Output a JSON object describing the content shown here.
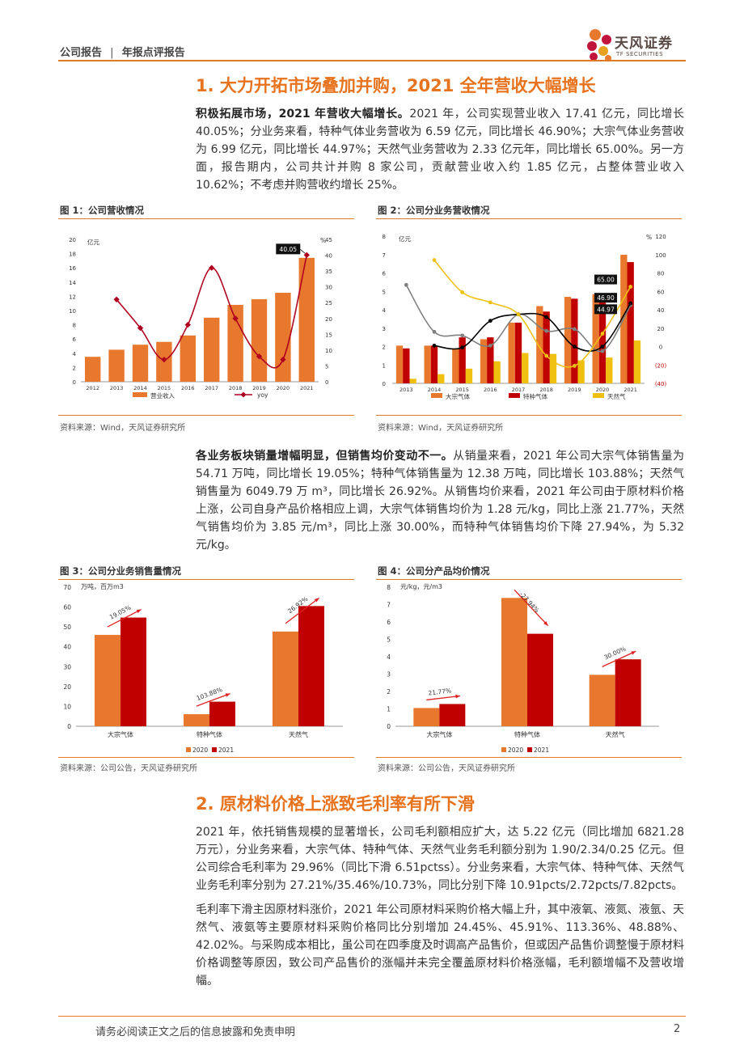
{
  "header": {
    "left": "公司报告",
    "sep": "|",
    "right": "年报点评报告",
    "brand": "天风证券",
    "brand_sub": "TF SECURITIES"
  },
  "section1": {
    "title": "1. 大力开拓市场叠加并购，2021 全年营收大幅增长",
    "p1_bold": "积极拓展市场，2021 年营收大幅增长。",
    "p1_text": "2021 年，公司实现营业收入 17.41 亿元，同比增长 40.05%；分业务来看，特种气体业务营收为 6.59 亿元，同比增长 46.90%；大宗气体业务营收为 6.99 亿元，同比增长 44.97%；天然气业务营收为 2.33 亿元年，同比增长 65.00%。另一方面，报告期内，公司共计并购 8 家公司，贡献营业收入约 1.85 亿元，占整体营业收入 10.62%；不考虑并购营收约增长 25%。",
    "p2_bold": "各业务板块销量增幅明显，但销售均价变动不一。",
    "p2_text": "从销量来看，2021 年公司大宗气体销售量为 54.71 万吨，同比增长 19.05%；特种气体销售量为 12.38 万吨，同比增长 103.88%；天然气销售量为 6049.79 万 m³，同比增长 26.92%。从销售均价来看，2021 年公司由于原材料价格上涨，公司自身产品价格相应上调，大宗气体销售均价为 1.28 元/kg，同比上涨 21.77%，天然气销售均价为 3.85 元/m³，同比上涨 30.00%，而特种气体销售均价下降 27.94%，为 5.32 元/kg。"
  },
  "section2": {
    "title": "2. 原材料价格上涨致毛利率有所下滑",
    "p1": "2021 年，依托销售规模的显著增长，公司毛利额相应扩大，达 5.22 亿元（同比增加 6821.28 万元），分业务来看，大宗气体、特种气体、天然气业务毛利额分别为 1.90/2.34/0.25 亿元。但公司综合毛利率为 29.96%（同比下滑 6.51pctss）。分业务来看，大宗气体、特种气体、天然气业务毛利率分别为 27.21%/35.46%/10.73%，同比分别下降 10.91pcts/2.72pcts/7.82pcts。",
    "p2": "毛利率下滑主因原材料涨价，2021 年公司原材料采购价格大幅上升，其中液氧、液氮、液氩、天然气、液氨等主要原材料采购价格同比分别增加 24.45%、45.91%、113.36%、48.88%、42.02%。与采购成本相比，虽公司在四季度及时调高产品售价，但或因产品售价调整慢于原材料价格调整等原因，致公司产品售价的涨幅并未完全覆盖原材料价格涨幅，毛利额增幅不及营收增幅。"
  },
  "figures": {
    "f1": {
      "title": "图 1：公司营收情况",
      "source": "资料来源：Wind，天风证券研究所"
    },
    "f2": {
      "title": "图 2：公司分业务营收情况",
      "source": "资料来源：Wind，天风证券研究所"
    },
    "f3": {
      "title": "图 3：公司分业务销售量情况",
      "source": "资料来源：公司公告，天风证券研究所"
    },
    "f4": {
      "title": "图 4：公司分产品均价情况",
      "source": "资料来源：公司公告，天风证券研究所"
    }
  },
  "footer": {
    "disclaimer": "请务必阅读正文之后的信息披露和免责申明",
    "page": "2"
  },
  "colors": {
    "orange": "#e8782d",
    "red": "#c00000",
    "gold": "#f0c010",
    "darkred": "#b00020",
    "accent": "#e07b22"
  },
  "chart_data": [
    {
      "id": "f1",
      "type": "bar",
      "categories": [
        "2012",
        "2013",
        "2014",
        "2015",
        "2016",
        "2017",
        "2018",
        "2019",
        "2020",
        "2021"
      ],
      "series": [
        {
          "name": "营业收入",
          "type": "bar",
          "axis": "left",
          "values": [
            3.5,
            4.5,
            5.2,
            5.6,
            6.5,
            9.0,
            10.8,
            11.6,
            12.5,
            17.41
          ]
        },
        {
          "name": "yoy",
          "type": "line",
          "axis": "right",
          "values": [
            null,
            26,
            17,
            7,
            18,
            36,
            20,
            8,
            7,
            40.05
          ]
        }
      ],
      "ylabel_left": "亿元",
      "ylabel_right": "%",
      "ylim_left": [
        0,
        20
      ],
      "ylim_right": [
        0,
        45
      ],
      "yticks_left": [
        "0",
        "2",
        "4",
        "6",
        "8",
        "10",
        "12",
        "14",
        "16",
        "18",
        "20"
      ],
      "yticks_right": [
        "0",
        "5",
        "10",
        "15",
        "20",
        "25",
        "30",
        "35",
        "40",
        "45"
      ],
      "annotation": "40.05"
    },
    {
      "id": "f2",
      "type": "bar",
      "categories": [
        "2013",
        "2014",
        "2015",
        "2016",
        "2017",
        "2018",
        "2019",
        "2020",
        "2021"
      ],
      "series": [
        {
          "name": "大宗气体",
          "type": "bar",
          "axis": "left",
          "values": [
            2.05,
            2.05,
            1.9,
            2.4,
            3.3,
            4.2,
            4.7,
            4.85,
            6.99
          ]
        },
        {
          "name": "特种气体",
          "type": "bar",
          "axis": "left",
          "values": [
            1.9,
            2.05,
            2.5,
            2.5,
            3.3,
            3.9,
            4.6,
            4.5,
            6.59
          ]
        },
        {
          "name": "天然气",
          "type": "bar",
          "axis": "left",
          "values": [
            0.25,
            0.5,
            0.8,
            1.2,
            1.65,
            1.6,
            1.25,
            1.4,
            2.33
          ]
        },
        {
          "name": "大宗气体 yoy",
          "type": "line",
          "axis": "right",
          "values": [
            67,
            16,
            12,
            1,
            35,
            17,
            19,
            -5,
            44.97
          ]
        },
        {
          "name": "特种气体 yoy",
          "type": "line",
          "axis": "right",
          "values": [
            null,
            1,
            -1,
            28,
            35,
            32,
            0,
            0,
            46.9
          ]
        },
        {
          "name": "天然气 yoy",
          "type": "line",
          "axis": "right",
          "values": [
            null,
            94,
            59,
            48,
            35,
            -10,
            -21,
            14,
            65.0
          ]
        }
      ],
      "ylabel_left": "亿元",
      "ylabel_right": "%",
      "ylim_left": [
        0,
        8
      ],
      "ylim_right": [
        -40,
        120
      ],
      "yticks_left": [
        "0",
        "1",
        "2",
        "3",
        "4",
        "5",
        "6",
        "7",
        "8"
      ],
      "yticks_right": [
        "(40)",
        "(20)",
        "0",
        "20",
        "40",
        "60",
        "80",
        "100",
        "120"
      ],
      "annotations": [
        "65.00",
        "46.90",
        "44.97"
      ]
    },
    {
      "id": "f3",
      "type": "bar",
      "categories": [
        "大宗气体",
        "特种气体",
        "天然气"
      ],
      "series": [
        {
          "name": "2020",
          "values": [
            45.96,
            6.07,
            47.66
          ]
        },
        {
          "name": "2021",
          "values": [
            54.71,
            12.38,
            60.5
          ]
        }
      ],
      "ylabel": "万吨，百万m3",
      "ylim": [
        0,
        70
      ],
      "yticks": [
        "0",
        "10",
        "20",
        "30",
        "40",
        "50",
        "60",
        "70"
      ],
      "annotations": [
        "19.05%",
        "103.88%",
        "26.92%"
      ]
    },
    {
      "id": "f4",
      "type": "bar",
      "categories": [
        "大宗气体",
        "特种气体",
        "天然气"
      ],
      "series": [
        {
          "name": "2020",
          "values": [
            1.05,
            7.38,
            2.96
          ]
        },
        {
          "name": "2021",
          "values": [
            1.28,
            5.32,
            3.85
          ]
        }
      ],
      "ylabel": "元/kg，元/m3",
      "ylim": [
        0,
        8
      ],
      "yticks": [
        "0",
        "1",
        "2",
        "3",
        "4",
        "5",
        "6",
        "7",
        "8"
      ],
      "annotations": [
        "21.77%",
        "-27.94%",
        "30.00%"
      ]
    }
  ]
}
